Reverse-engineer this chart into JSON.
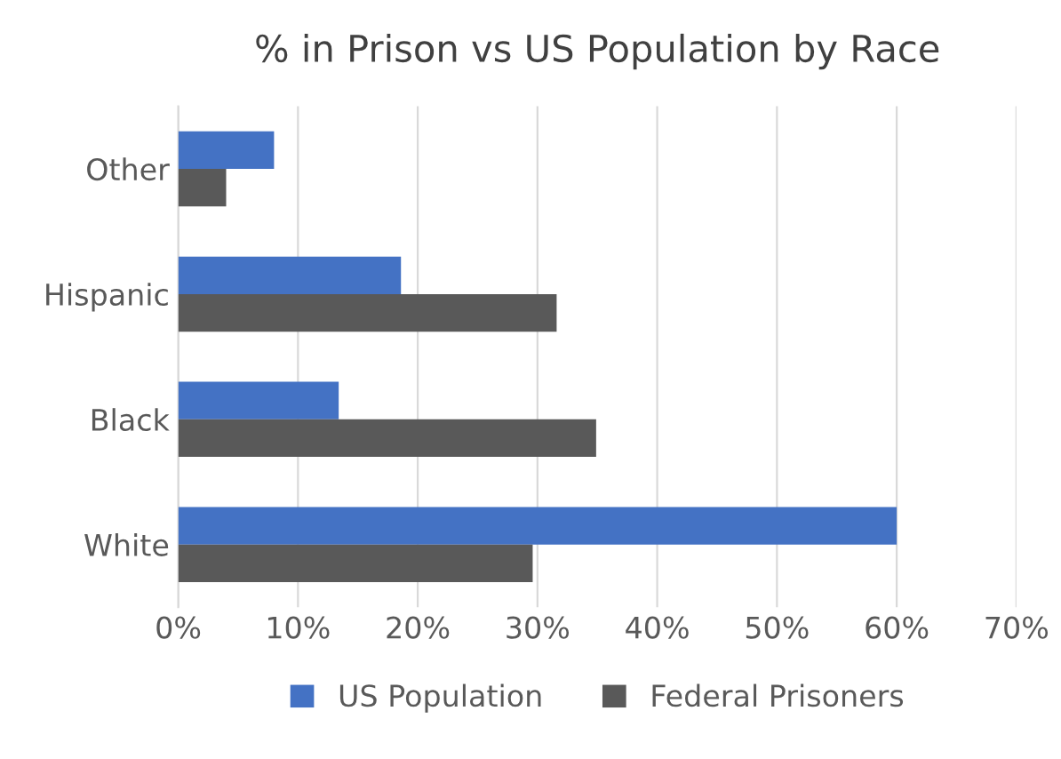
{
  "chart_data": {
    "type": "bar",
    "orientation": "horizontal",
    "title": "% in Prison vs US Population by Race",
    "categories": [
      "Other",
      "Hispanic",
      "Black",
      "White"
    ],
    "series": [
      {
        "name": "US Population",
        "color": "#4472c4",
        "values": [
          8.0,
          18.6,
          13.4,
          60.0
        ]
      },
      {
        "name": "Federal Prisoners",
        "color": "#595959",
        "values": [
          4.0,
          31.6,
          34.9,
          29.6
        ]
      }
    ],
    "xlim": [
      0,
      70
    ],
    "xticks": [
      {
        "value": 0,
        "label": "0%"
      },
      {
        "value": 10,
        "label": "10%"
      },
      {
        "value": 20,
        "label": "20%"
      },
      {
        "value": 30,
        "label": "30%"
      },
      {
        "value": 40,
        "label": "40%"
      },
      {
        "value": 50,
        "label": "50%"
      },
      {
        "value": 60,
        "label": "60%"
      },
      {
        "value": 70,
        "label": "70%"
      }
    ],
    "grid": "x",
    "legend": "bottom"
  }
}
